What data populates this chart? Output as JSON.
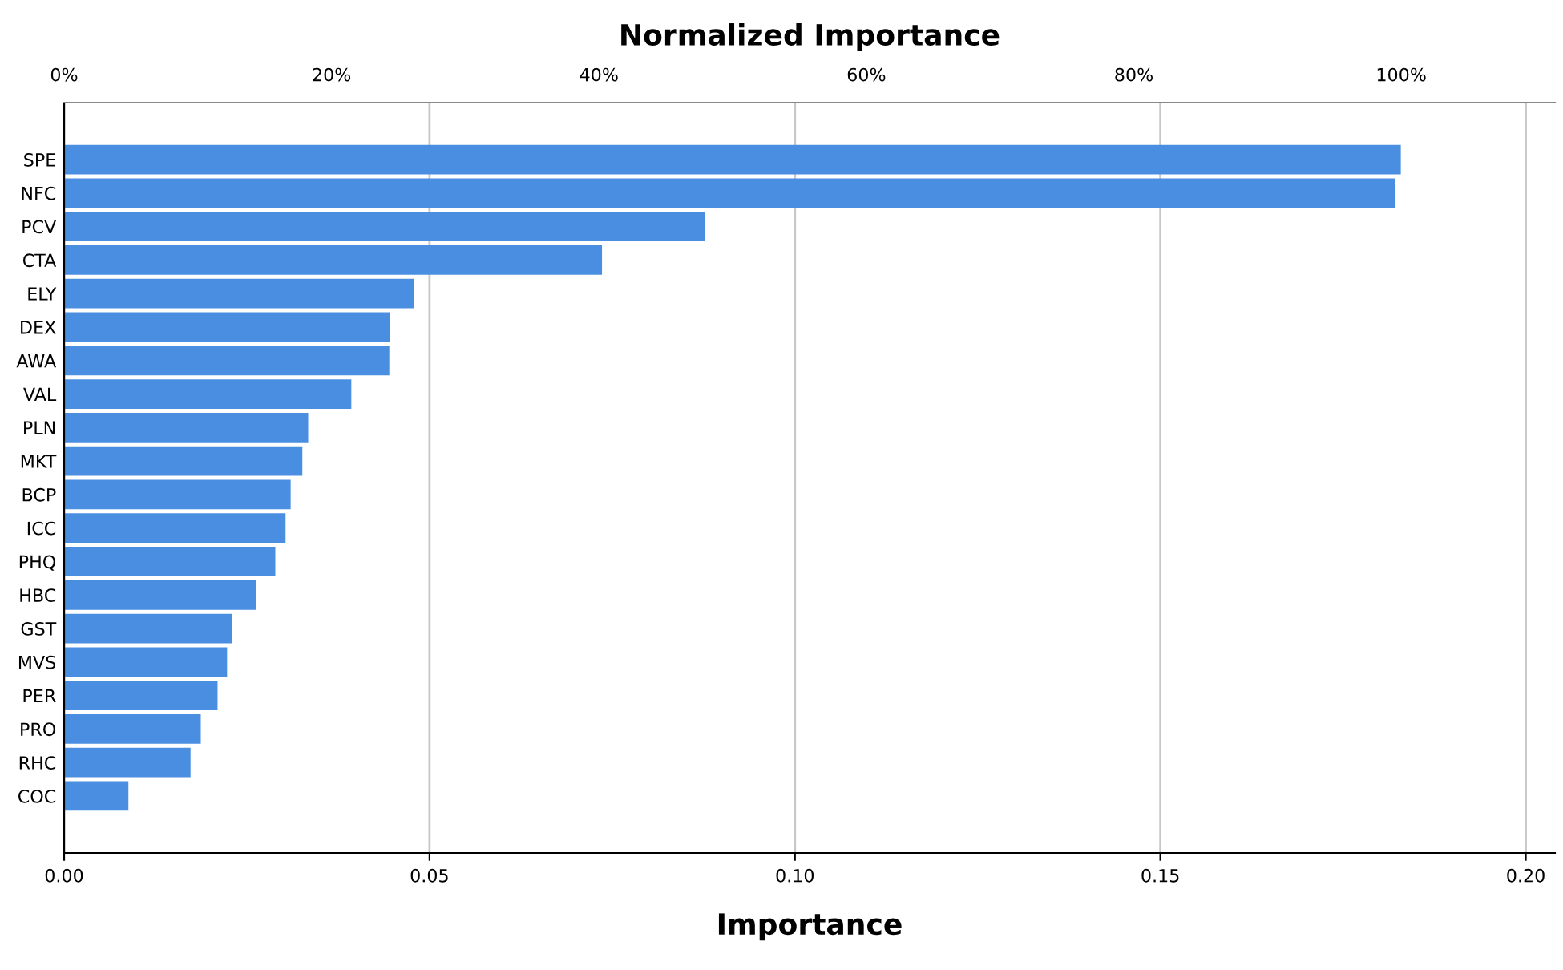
{
  "chart_data": {
    "type": "bar",
    "orientation": "horizontal",
    "categories": [
      "SPE",
      "NFC",
      "PCV",
      "CTA",
      "ELY",
      "DEX",
      "AWA",
      "VAL",
      "PLN",
      "MKT",
      "BCP",
      "ICC",
      "PHQ",
      "HBC",
      "GST",
      "MVS",
      "PER",
      "PRO",
      "RHC",
      "COC"
    ],
    "values": [
      0.1829,
      0.1821,
      0.0877,
      0.0736,
      0.0479,
      0.0446,
      0.0445,
      0.0393,
      0.0334,
      0.0326,
      0.031,
      0.0303,
      0.0289,
      0.0263,
      0.023,
      0.0223,
      0.021,
      0.0187,
      0.0173,
      0.0088
    ],
    "color": "#4a8ee2",
    "xlabel": "Importance",
    "x2label": "Normalized Importance",
    "xlim": [
      0,
      0.204
    ],
    "xticks": [
      {
        "value": 0,
        "label": "0.00"
      },
      0.05,
      {
        "value": 0.1,
        "label": "0.10"
      },
      0.15,
      {
        "value": 0.2,
        "label": "0.20"
      }
    ],
    "x2lim": [
      0,
      111.5
    ],
    "x2ticks": [
      {
        "value": 0,
        "label": "0%"
      },
      {
        "value": 20,
        "label": "20%"
      },
      {
        "value": 40,
        "label": "40%"
      },
      {
        "value": 60,
        "label": "60%"
      },
      {
        "value": 80,
        "label": "80%"
      },
      {
        "value": 100,
        "label": "100%"
      }
    ],
    "grid": "x"
  }
}
